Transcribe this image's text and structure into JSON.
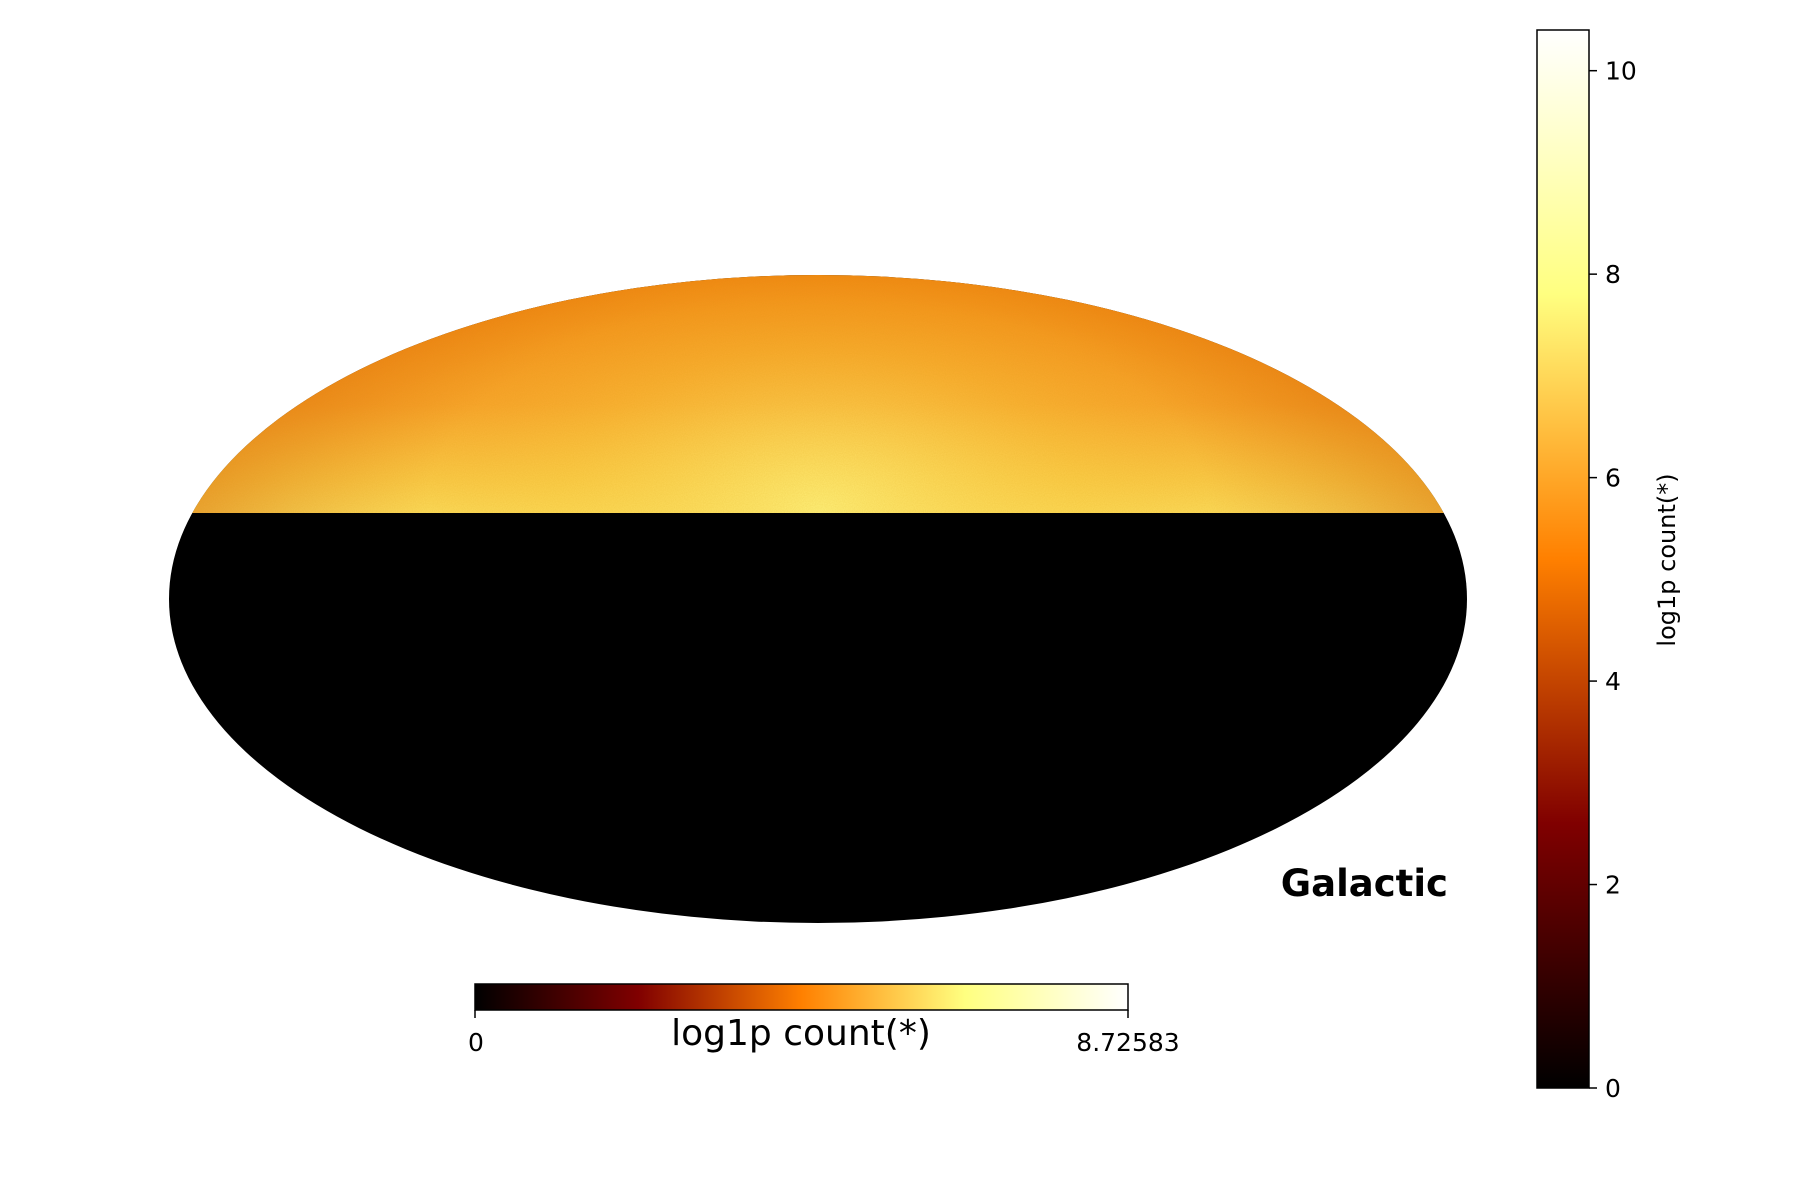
{
  "chart_data": [
    {
      "type": "heatmap",
      "projection": "mollweide",
      "title": "",
      "coord_label": "Galactic",
      "value_label": "log1p count(*)",
      "colormap": "afmhot",
      "value_range": [
        0,
        8.72583
      ],
      "colorbar_ticks": [
        "0",
        "8.72583"
      ],
      "colorbar_position": "bottom",
      "coverage": "northern half filled, southern half zero (black)",
      "regions": [
        {
          "name": "north-edge",
          "value": 5.0
        },
        {
          "name": "north-pole",
          "value": 5.3
        },
        {
          "name": "galactic-plane-centre",
          "value": 7.6
        },
        {
          "name": "south",
          "value": 0
        }
      ]
    },
    {
      "type": "heatmap",
      "role": "colorbar",
      "colormap": "afmhot",
      "ylabel": "log1p count(*)",
      "ylim": [
        0,
        10.4
      ],
      "ticks": [
        0,
        2,
        4,
        6,
        8,
        10
      ],
      "colorbar_position": "right"
    }
  ],
  "colors": {
    "background": "#ffffff",
    "empty_region": "#000000"
  }
}
